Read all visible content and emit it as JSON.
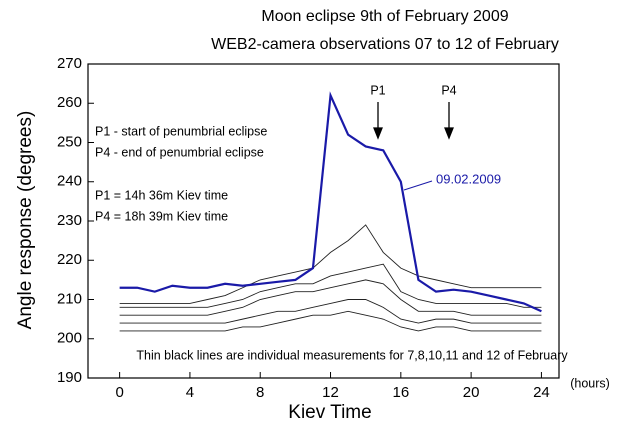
{
  "chart_data": {
    "type": "line",
    "title": "Moon eclipse 9th of February 2009",
    "subtitle": "WEB2-camera observations  07 to 12 of February",
    "x_label": "Kiev Time",
    "x_unit": "(hours)",
    "y_label": "Angle response (degrees)",
    "annotations": {
      "p1_def": "P1 - start of penumbrial eclipse",
      "p4_def": "P4 - end of penumbrial eclipse",
      "p1_time": "P1 = 14h 36m Kiev time",
      "p4_time": "P4 = 18h 39m Kiev time",
      "p1_marker": "P1",
      "p4_marker": "P4",
      "footnote": "Thin black lines are individual measurements for 7,8,10,11 and 12 of February"
    },
    "x": [
      0,
      1,
      2,
      3,
      4,
      5,
      6,
      7,
      8,
      9,
      10,
      11,
      12,
      13,
      14,
      15,
      16,
      17,
      18,
      19,
      20,
      21,
      22,
      23,
      24
    ],
    "series": [
      {
        "name": "09.02.2009",
        "color": "#1a1aa8",
        "values": [
          213,
          213,
          212,
          213.5,
          213,
          213,
          214,
          213.5,
          214,
          214.5,
          215,
          218,
          262,
          252,
          249,
          248,
          240,
          215,
          212,
          212.5,
          212,
          211,
          210,
          209,
          207
        ]
      },
      {
        "color": "#222222",
        "values": [
          209,
          209,
          209,
          209,
          209,
          210,
          211,
          213,
          215,
          216,
          217,
          218,
          222,
          225,
          229,
          222,
          218,
          216,
          215,
          214,
          213,
          213,
          213,
          213,
          213
        ]
      },
      {
        "color": "#222222",
        "values": [
          208,
          208,
          208,
          208,
          208,
          208,
          209,
          210,
          212,
          213,
          214,
          214,
          216,
          217,
          218,
          219,
          212,
          210,
          209,
          209,
          209,
          209,
          209,
          208,
          208
        ]
      },
      {
        "color": "#222222",
        "values": [
          206,
          206,
          206,
          206,
          206,
          206,
          207,
          208,
          210,
          211,
          212,
          212,
          213,
          214,
          215,
          214,
          210,
          207,
          207,
          207,
          206,
          206,
          206,
          206,
          206
        ]
      },
      {
        "color": "#222222",
        "values": [
          204,
          204,
          204,
          204,
          204,
          204,
          204,
          205,
          206,
          207,
          207,
          208,
          209,
          210,
          210,
          208,
          205,
          204,
          205,
          205,
          204,
          204,
          204,
          204,
          204
        ]
      },
      {
        "color": "#222222",
        "values": [
          202,
          202,
          202,
          202,
          202,
          202,
          202,
          203,
          203,
          204,
          205,
          206,
          206,
          207,
          206,
          205,
          203,
          202,
          203,
          203,
          202,
          202,
          202,
          202,
          202
        ]
      }
    ],
    "xlim": [
      -1.8,
      25
    ],
    "ylim": [
      190,
      270
    ],
    "xticks": [
      0,
      4,
      8,
      12,
      16,
      20,
      24
    ],
    "yticks": [
      190,
      200,
      210,
      220,
      230,
      240,
      250,
      260,
      270
    ]
  }
}
